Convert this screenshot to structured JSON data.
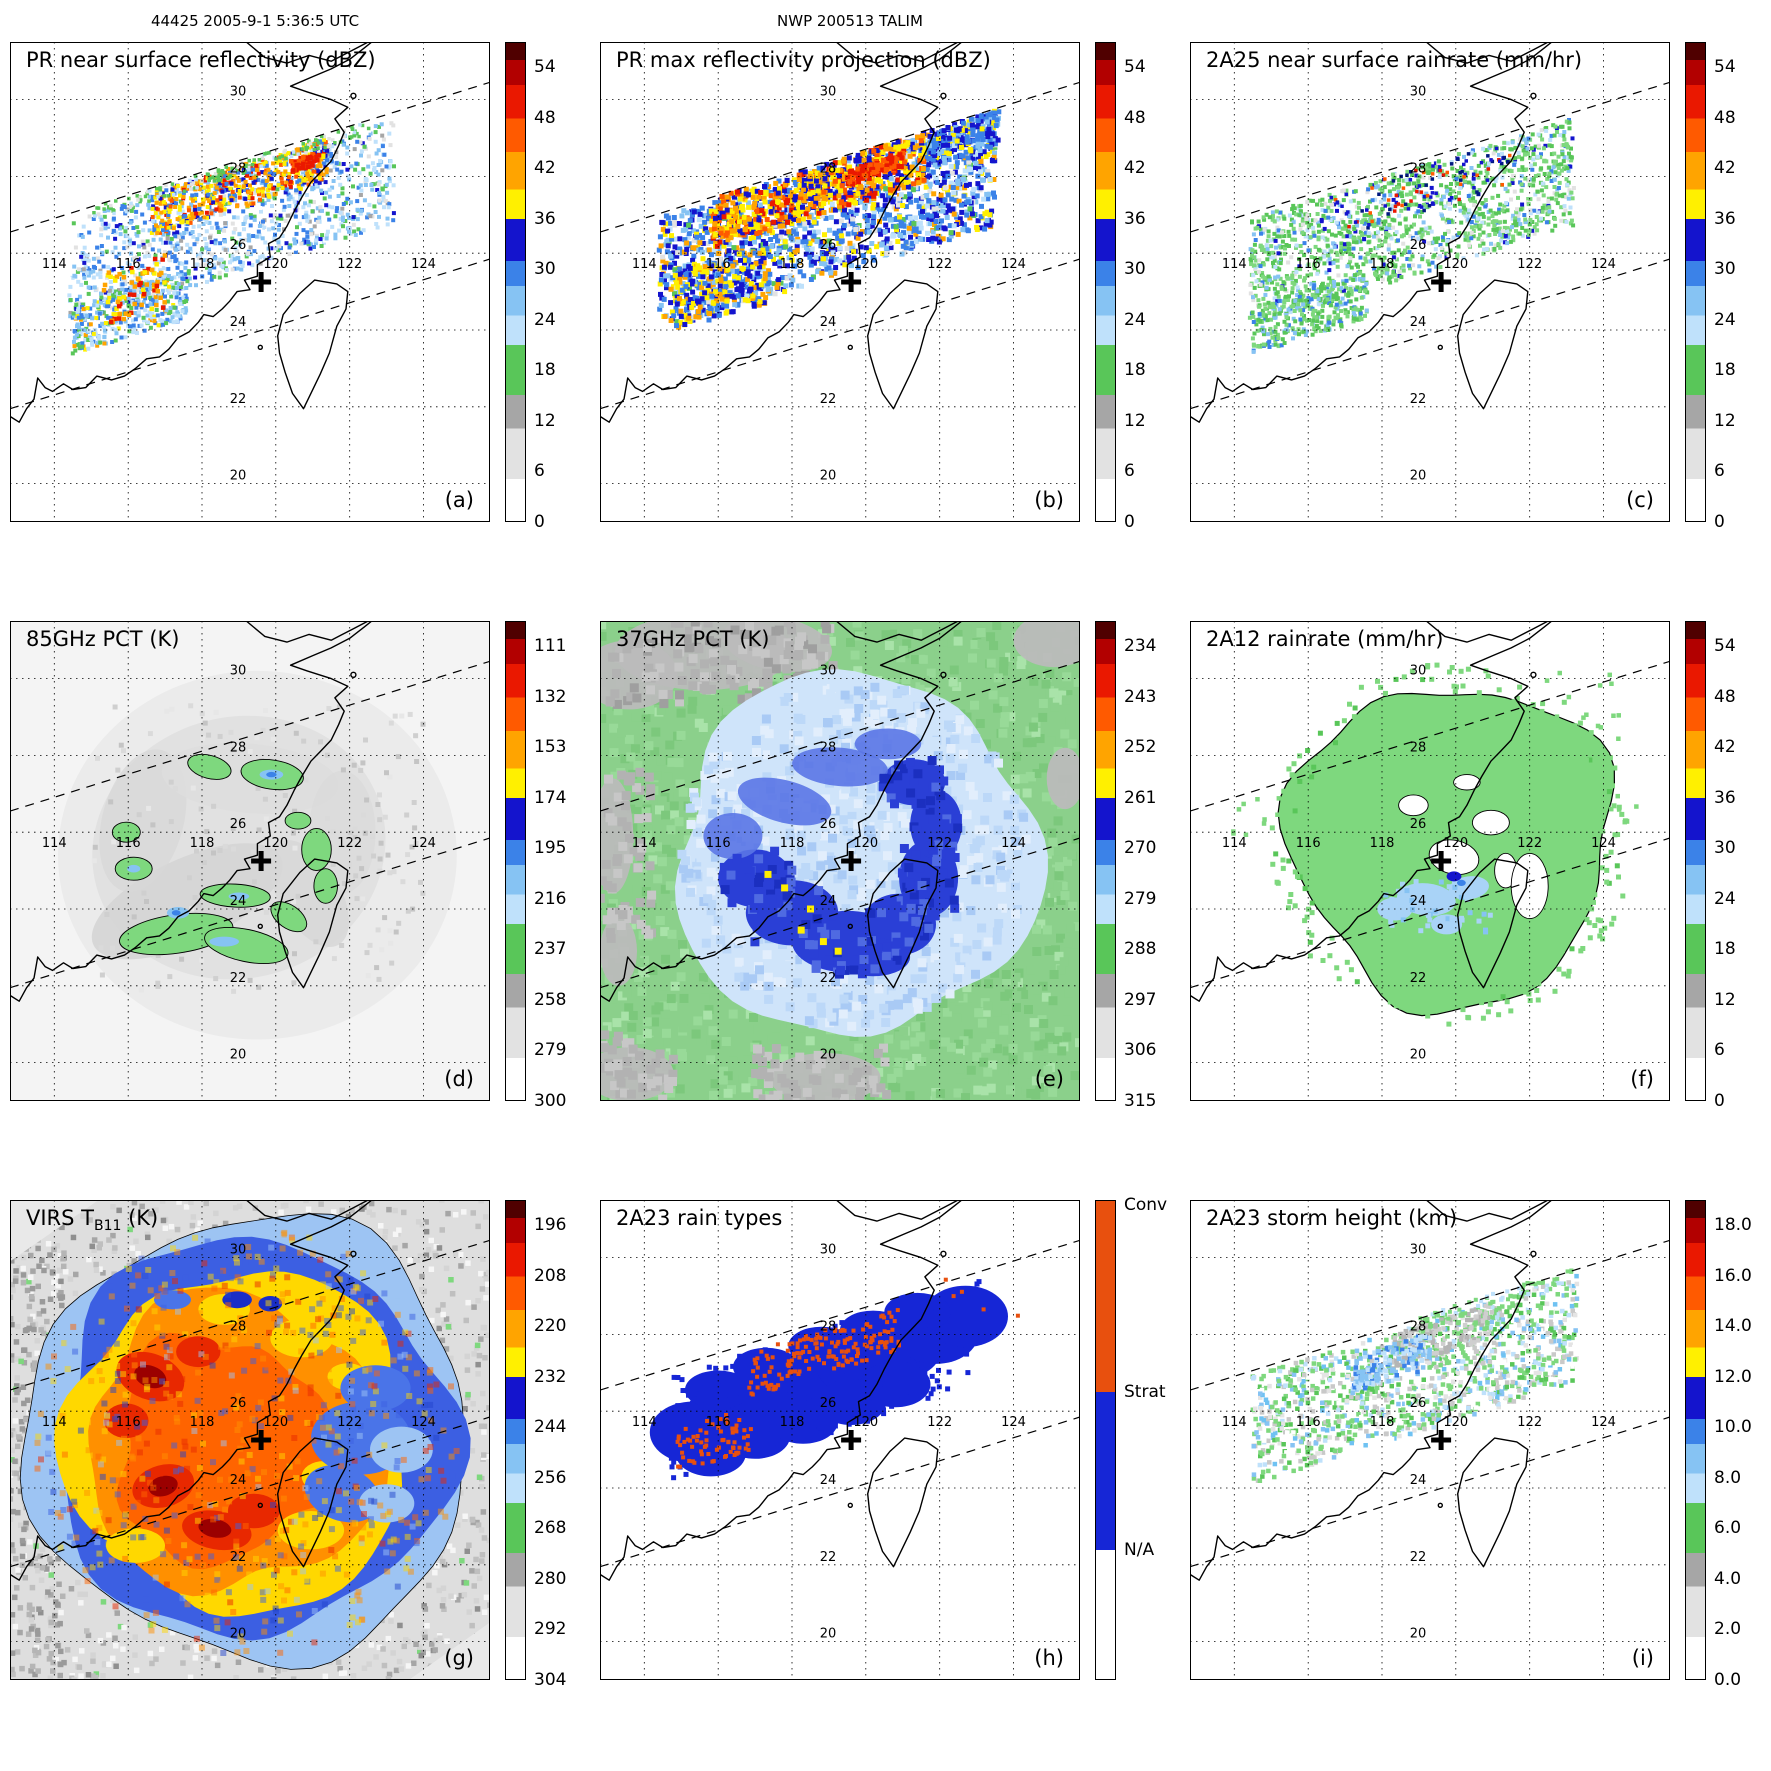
{
  "header": {
    "left": "44425 2005-9-1 5:36:5 UTC",
    "center": "NWP 200513 TALIM"
  },
  "map": {
    "lon_labels": [
      "114",
      "116",
      "118",
      "120",
      "122",
      "124"
    ],
    "lat_labels": [
      "30",
      "28",
      "26",
      "24",
      "22",
      "20"
    ]
  },
  "colorbar": {
    "range": [
      0,
      57
    ],
    "segments": [
      [
        0,
        5,
        "#ffffff"
      ],
      [
        5,
        11,
        "#e2e2e2"
      ],
      [
        11,
        15,
        "#a6a6a6"
      ],
      [
        15,
        21,
        "#59c659"
      ],
      [
        21,
        24.5,
        "#bfe1fb"
      ],
      [
        24.5,
        28,
        "#86c3f3"
      ],
      [
        28,
        31,
        "#3b82e8"
      ],
      [
        31,
        36,
        "#1414cd"
      ],
      [
        36,
        39.5,
        "#fff000"
      ],
      [
        39.5,
        44,
        "#ffa400"
      ],
      [
        44,
        48,
        "#ff5a00"
      ],
      [
        48,
        52,
        "#ea1800"
      ],
      [
        52,
        55,
        "#b20000"
      ],
      [
        55,
        57,
        "#500000"
      ]
    ]
  },
  "rain_types": {
    "labels_bottom_to_top": [
      "N/A",
      "Strat",
      "Conv"
    ],
    "na_color": "#ffffff",
    "strat_color": "#1626d6",
    "conv_color": "#e8500e",
    "boundaries": [
      0.27,
      0.6
    ]
  },
  "panels": [
    {
      "id": "a",
      "title": "PR near surface reflectivity (dBZ)",
      "letter": "(a)",
      "ticks": [
        "0",
        "6",
        "12",
        "18",
        "24",
        "30",
        "36",
        "42",
        "48",
        "54"
      ]
    },
    {
      "id": "b",
      "title": "PR max reflectivity projection (dBZ)",
      "letter": "(b)",
      "ticks": [
        "0",
        "6",
        "12",
        "18",
        "24",
        "30",
        "36",
        "42",
        "48",
        "54"
      ]
    },
    {
      "id": "c",
      "title": "2A25 near surface rainrate (mm/hr)",
      "letter": "(c)",
      "ticks": [
        "0",
        "6",
        "12",
        "18",
        "24",
        "30",
        "36",
        "42",
        "48",
        "54"
      ]
    },
    {
      "id": "d",
      "title": "85GHz PCT (K)",
      "letter": "(d)",
      "ticks": [
        "300",
        "279",
        "258",
        "237",
        "216",
        "195",
        "174",
        "153",
        "132",
        "111"
      ]
    },
    {
      "id": "e",
      "title": "37GHz PCT (K)",
      "letter": "(e)",
      "ticks": [
        "315",
        "306",
        "297",
        "288",
        "279",
        "270",
        "261",
        "252",
        "243",
        "234"
      ]
    },
    {
      "id": "f",
      "title": "2A12 rainrate (mm/hr)",
      "letter": "(f)",
      "ticks": [
        "0",
        "6",
        "12",
        "18",
        "24",
        "30",
        "36",
        "42",
        "48",
        "54"
      ]
    },
    {
      "id": "g",
      "title": "VIRS TB11 (K)",
      "title_pre": "VIRS T",
      "title_sub": "B11",
      "title_post": " (K)",
      "letter": "(g)",
      "ticks": [
        "304",
        "292",
        "280",
        "268",
        "256",
        "244",
        "232",
        "220",
        "208",
        "196"
      ]
    },
    {
      "id": "h",
      "title": "2A23 rain types",
      "letter": "(h)",
      "ticks": [
        "N/A",
        "Strat",
        "Conv"
      ]
    },
    {
      "id": "i",
      "title": "2A23 storm height (km)",
      "letter": "(i)",
      "ticks": [
        "0.0",
        "2.0",
        "4.0",
        "6.0",
        "8.0",
        "10.0",
        "12.0",
        "14.0",
        "16.0",
        "18.0"
      ]
    }
  ],
  "chart_data": {
    "type": "heatmap",
    "title": "TRMM overpass 44425, 2005-9-1 5:36:5 UTC - Typhoon NWP 200513 TALIM",
    "projection": "lat-lon map, 3x3 panel grid",
    "map_extent": {
      "lon_range": [
        112.8,
        125.8
      ],
      "lat_range": [
        19.0,
        31.5
      ]
    },
    "grid": {
      "lon_ticks": [
        114,
        116,
        118,
        120,
        122,
        124
      ],
      "lat_ticks": [
        20,
        22,
        24,
        26,
        28,
        30
      ],
      "style": "dotted"
    },
    "storm_center": {
      "lon": 119.6,
      "lat": 25.25,
      "marker": "black cross"
    },
    "swath_edges": "two parallel dashed lines running SW to NE across every panel (satellite swath boundaries)",
    "coastlines": [
      "southeast China coast",
      "Taiwan island"
    ],
    "colorbar_colors_bottom_to_top": [
      "#ffffff",
      "#e2e2e2",
      "#a6a6a6",
      "#59c659",
      "#bfe1fb",
      "#86c3f3",
      "#3b82e8",
      "#1414cd",
      "#fff000",
      "#ffa400",
      "#ff5a00",
      "#ea1800",
      "#b20000",
      "#500000"
    ],
    "panels": [
      {
        "label": "(a)",
        "title": "PR near surface reflectivity (dBZ)",
        "units": "dBZ",
        "colorbar_ticks": [
          0,
          6,
          12,
          18,
          24,
          30,
          36,
          42,
          48,
          54
        ],
        "description": "Speckled reflectivity confined to the narrow PR swath; mostly 18-33 dBZ (green/blue) with an embedded 36-48 dBZ (yellow/orange/red) convective band northeast of the storm center and a secondary cluster southwest."
      },
      {
        "label": "(b)",
        "title": "PR max reflectivity projection (dBZ)",
        "units": "dBZ",
        "colorbar_ticks": [
          0,
          6,
          12,
          18,
          24,
          30,
          36,
          42,
          48,
          54
        ],
        "description": "Column-maximum reflectivity over the same swath; more contiguous coverage and larger areas of 36-48 dBZ."
      },
      {
        "label": "(c)",
        "title": "2A25 near surface rainrate (mm/hr)",
        "units": "mm/hr",
        "colorbar_ticks": [
          0,
          6,
          12,
          18,
          24,
          30,
          36,
          42,
          48,
          54
        ],
        "description": "Mostly light rain 1-10 mm/hr (green) across the PR swath with scattered 12-30 mm/hr (blue) pixels and a few isolated heavy cells."
      },
      {
        "label": "(d)",
        "title": "85GHz PCT (K)",
        "units": "K",
        "colorbar_ticks": [
          111,
          132,
          153,
          174,
          195,
          216,
          237,
          258,
          279,
          300
        ],
        "description": "Warm 258-300 K background (white/gray) with ice-scattering depressions near 216-237 K shown as black-contoured green blobs in spiral bands; a few blue pixels below 216 K."
      },
      {
        "label": "(e)",
        "title": "37GHz PCT (K)",
        "units": "K",
        "colorbar_ticks": [
          234,
          243,
          252,
          261,
          270,
          279,
          288,
          297,
          306,
          315
        ],
        "description": "Green field near 288 K, broad pale-blue (~279 K) region around the cyclone, deep-blue comma (~261-270 K) south and east of the center, scattered yellow pixels (~261 K), gray patches along swath edges."
      },
      {
        "label": "(f)",
        "title": "2A12 rainrate (mm/hr)",
        "units": "mm/hr",
        "colorbar_ticks": [
          0,
          6,
          12,
          18,
          24,
          30,
          36,
          42,
          48,
          54
        ],
        "description": "Large quasi-circular light-rain shield 1-8 mm/hr (green, black outlined) covering the cyclone, white rain-free holes near the center, light-blue 12-24 mm/hr patches south of the center."
      },
      {
        "label": "(g)",
        "title": "VIRS TB11 (K)",
        "units": "K",
        "colorbar_ticks": [
          196,
          208,
          220,
          232,
          244,
          256,
          268,
          280,
          292,
          304
        ],
        "description": "Infrared cloud-top temperatures: cold central dense overcast 208-232 K (orange/red with dark-red cores), ringed by 232-256 K (yellow then blue) spiral cloud, warm 268-304 K (gray/white) environment outside."
      },
      {
        "label": "(h)",
        "title": "2A23 rain types",
        "categories": [
          "Conv",
          "Strat",
          "N/A"
        ],
        "colors": {
          "Conv": "#e8500e",
          "Strat": "#1626d6",
          "N/A": "#ffffff"
        },
        "description": "Rain classification inside the PR swath: predominantly stratiform (blue) with convective pixels (orange) along the inner rainband and a southwest cluster."
      },
      {
        "label": "(i)",
        "title": "2A23 storm height (km)",
        "units": "km",
        "colorbar_ticks": [
          0.0,
          2.0,
          4.0,
          6.0,
          8.0,
          10.0,
          12.0,
          14.0,
          16.0,
          18.0
        ],
        "description": "Echo-top heights within the PR swath, mostly 4-8 km (gray/green) with clusters of 8-10 km (light blue) northeast of the center."
      }
    ]
  }
}
